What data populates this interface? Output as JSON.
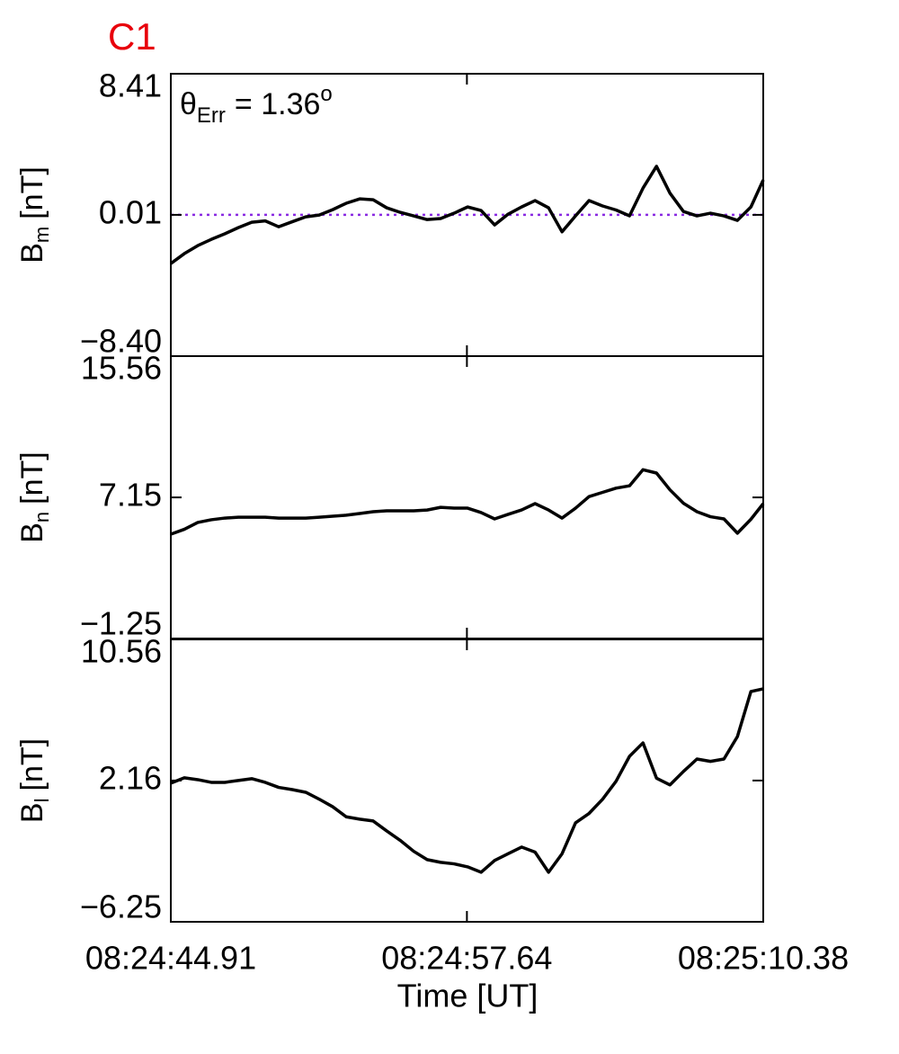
{
  "chart_data": {
    "type": "line",
    "title": "C1",
    "title_color": "#e8000b",
    "xlabel": "Time [UT]",
    "xlim": [
      30284.91,
      30310.38
    ],
    "xticks": [
      {
        "value": 30284.91,
        "label": "08:24:44.91"
      },
      {
        "value": 30297.64,
        "label": "08:24:57.64"
      },
      {
        "value": 30310.38,
        "label": "08:25:10.38"
      }
    ],
    "x": [
      30284.91,
      30285.49,
      30286.07,
      30286.65,
      30287.23,
      30287.81,
      30288.39,
      30288.97,
      30289.55,
      30290.13,
      30290.71,
      30291.29,
      30291.87,
      30292.45,
      30293.03,
      30293.61,
      30294.19,
      30294.77,
      30295.35,
      30295.93,
      30296.51,
      30297.09,
      30297.67,
      30298.25,
      30298.83,
      30299.41,
      30299.99,
      30300.57,
      30301.15,
      30301.73,
      30302.31,
      30302.89,
      30303.47,
      30304.05,
      30304.63,
      30305.21,
      30305.79,
      30306.37,
      30306.95,
      30307.53,
      30308.11,
      30308.69,
      30309.27,
      30309.85,
      30310.38
    ],
    "annotation": {
      "symbol": "θ",
      "sub": "Err",
      "text": "=  1.36",
      "sup": "o"
    },
    "panels": [
      {
        "ylabel": "B",
        "ylabel_sub": "m",
        "ylabel_unit": "[nT]",
        "ylim": [
          -8.4,
          8.41
        ],
        "yticks": [
          {
            "value": -8.4,
            "label": "−8.40"
          },
          0.01,
          8.41
        ],
        "hline": 0.01,
        "hline_color": "#8a2be2",
        "series": [
          {
            "color": "#000000",
            "values": [
              -2.89,
              -2.3,
              -1.82,
              -1.45,
              -1.12,
              -0.75,
              -0.43,
              -0.35,
              -0.7,
              -0.4,
              -0.11,
              0.0,
              0.32,
              0.7,
              0.96,
              0.91,
              0.43,
              0.16,
              -0.05,
              -0.27,
              -0.21,
              0.11,
              0.48,
              0.27,
              -0.59,
              0.05,
              0.48,
              0.86,
              0.43,
              -1.0,
              -0.05,
              0.86,
              0.54,
              0.3,
              -0.05,
              1.6,
              2.9,
              1.3,
              0.21,
              -0.05,
              0.11,
              -0.05,
              -0.32,
              0.48,
              2.09
            ]
          }
        ]
      },
      {
        "ylabel": "B",
        "ylabel_sub": "n",
        "ylabel_unit": "[nT]",
        "ylim": [
          -1.25,
          15.56
        ],
        "yticks": [
          {
            "value": -1.25,
            "label": "−1.25"
          },
          7.15,
          15.56
        ],
        "series": [
          {
            "color": "#000000",
            "values": [
              4.96,
              5.25,
              5.66,
              5.82,
              5.92,
              5.97,
              5.97,
              5.97,
              5.92,
              5.92,
              5.92,
              5.97,
              6.03,
              6.09,
              6.19,
              6.3,
              6.35,
              6.35,
              6.35,
              6.4,
              6.56,
              6.51,
              6.51,
              6.25,
              5.87,
              6.14,
              6.4,
              6.78,
              6.4,
              5.92,
              6.51,
              7.2,
              7.45,
              7.7,
              7.84,
              8.8,
              8.6,
              7.6,
              6.8,
              6.3,
              6.0,
              5.87,
              5.02,
              5.85,
              6.78
            ]
          }
        ]
      },
      {
        "ylabel": "B",
        "ylabel_sub": "l",
        "ylabel_unit": "[nT]",
        "ylim": [
          -6.25,
          10.56
        ],
        "yticks": [
          {
            "value": -6.25,
            "label": "−6.25"
          },
          2.16,
          10.56
        ],
        "series": [
          {
            "color": "#000000",
            "values": [
              2.0,
              2.32,
              2.21,
              2.05,
              2.05,
              2.16,
              2.27,
              2.05,
              1.75,
              1.62,
              1.46,
              1.05,
              0.6,
              0.0,
              -0.14,
              -0.25,
              -0.84,
              -1.4,
              -2.05,
              -2.55,
              -2.71,
              -2.8,
              -2.98,
              -3.3,
              -2.6,
              -2.2,
              -1.8,
              -2.1,
              -3.3,
              -2.2,
              -0.36,
              0.2,
              1.04,
              2.11,
              3.6,
              4.4,
              2.3,
              1.9,
              2.7,
              3.44,
              3.3,
              3.44,
              4.78,
              7.46,
              7.62
            ]
          }
        ]
      }
    ]
  }
}
